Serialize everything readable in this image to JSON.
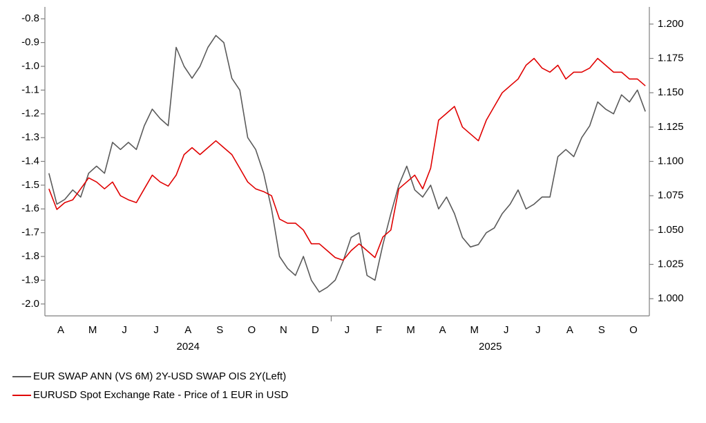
{
  "chart_data": {
    "type": "line",
    "categories": [
      null,
      "A",
      null,
      null,
      null,
      "M",
      null,
      null,
      null,
      "J",
      null,
      null,
      null,
      "J",
      null,
      null,
      null,
      "A",
      null,
      null,
      null,
      "S",
      null,
      null,
      null,
      "O",
      null,
      null,
      null,
      "N",
      null,
      null,
      null,
      "D",
      null,
      null,
      null,
      "J",
      null,
      null,
      null,
      "F",
      null,
      null,
      null,
      "M",
      null,
      null,
      null,
      "A",
      null,
      null,
      null,
      "M",
      null,
      null,
      null,
      "J",
      null,
      null,
      null,
      "J",
      null,
      null,
      null,
      "A",
      null,
      null,
      null,
      "S",
      null,
      null,
      null,
      "O",
      null,
      null
    ],
    "years": [
      "2024",
      "2025"
    ],
    "series": [
      {
        "name": "EUR SWAP ANN (VS 6M) 2Y-USD SWAP OIS 2Y(Left)",
        "color": "#5a5a5a",
        "axis": "y",
        "values": [
          -1.45,
          -1.58,
          -1.56,
          -1.52,
          -1.55,
          -1.45,
          -1.42,
          -1.45,
          -1.32,
          -1.35,
          -1.32,
          -1.35,
          -1.25,
          -1.18,
          -1.22,
          -1.25,
          -0.92,
          -1.0,
          -1.05,
          -1.0,
          -0.92,
          -0.87,
          -0.9,
          -1.05,
          -1.1,
          -1.3,
          -1.35,
          -1.45,
          -1.6,
          -1.8,
          -1.85,
          -1.88,
          -1.8,
          -1.9,
          -1.95,
          -1.93,
          -1.9,
          -1.82,
          -1.72,
          -1.7,
          -1.88,
          -1.9,
          -1.75,
          -1.62,
          -1.5,
          -1.42,
          -1.52,
          -1.55,
          -1.5,
          -1.6,
          -1.55,
          -1.62,
          -1.72,
          -1.76,
          -1.75,
          -1.7,
          -1.68,
          -1.62,
          -1.58,
          -1.52,
          -1.6,
          -1.58,
          -1.55,
          -1.55,
          -1.38,
          -1.35,
          -1.38,
          -1.3,
          -1.25,
          -1.15,
          -1.18,
          -1.2,
          -1.12,
          -1.15,
          -1.1,
          -1.19
        ]
      },
      {
        "name": "EURUSD Spot Exchange Rate  - Price of 1 EUR in USD",
        "color": "#e00000",
        "axis": "y2",
        "values": [
          1.08,
          1.065,
          1.07,
          1.072,
          1.08,
          1.088,
          1.085,
          1.08,
          1.085,
          1.075,
          1.072,
          1.07,
          1.08,
          1.09,
          1.085,
          1.082,
          1.09,
          1.105,
          1.11,
          1.105,
          1.11,
          1.115,
          1.11,
          1.105,
          1.095,
          1.085,
          1.08,
          1.078,
          1.075,
          1.058,
          1.055,
          1.055,
          1.05,
          1.04,
          1.04,
          1.035,
          1.03,
          1.028,
          1.035,
          1.04,
          1.035,
          1.03,
          1.045,
          1.05,
          1.08,
          1.085,
          1.09,
          1.08,
          1.095,
          1.13,
          1.135,
          1.14,
          1.125,
          1.12,
          1.115,
          1.13,
          1.14,
          1.15,
          1.155,
          1.16,
          1.17,
          1.175,
          1.168,
          1.165,
          1.17,
          1.16,
          1.165,
          1.165,
          1.168,
          1.175,
          1.17,
          1.165,
          1.165,
          1.16,
          1.16,
          1.155
        ]
      }
    ],
    "ylim": [
      -2.05,
      -0.75
    ],
    "yticks": [
      -0.8,
      -0.9,
      {
        "value": -1,
        "label": "-1.0"
      },
      -1.1,
      -1.2,
      -1.3,
      -1.4,
      -1.5,
      -1.6,
      -1.7,
      -1.8,
      -1.9,
      {
        "value": -2,
        "label": "-2.0"
      }
    ],
    "y2lim": [
      0.9875,
      1.2125
    ],
    "y2ticks": [
      {
        "value": 1.2,
        "label": "1.200"
      },
      1.175,
      {
        "value": 1.15,
        "label": "1.150"
      },
      1.125,
      {
        "value": 1.1,
        "label": "1.100"
      },
      1.075,
      {
        "value": 1.05,
        "label": "1.050"
      },
      1.025,
      {
        "value": 1,
        "label": "1.000"
      }
    ],
    "grid": false
  }
}
